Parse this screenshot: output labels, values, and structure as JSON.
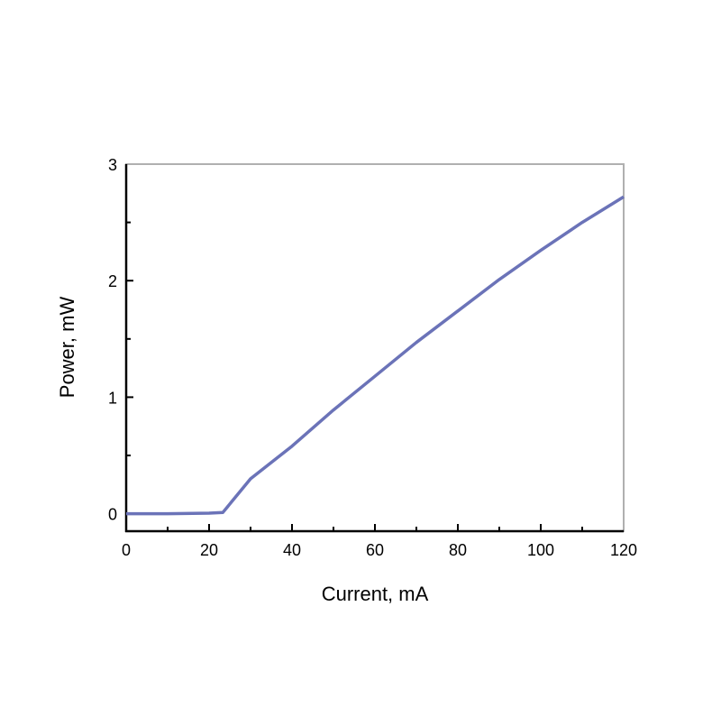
{
  "chart_data": {
    "type": "line",
    "title": "",
    "xlabel": "Current, mA",
    "ylabel": "Power, mW",
    "xlim": [
      0,
      120
    ],
    "ylim": [
      -0.15,
      3
    ],
    "xticks": [
      0,
      20,
      40,
      60,
      80,
      100,
      120
    ],
    "xtick_labels": [
      "0",
      "20",
      "40",
      "60",
      "80",
      "100",
      "120"
    ],
    "xminor": [
      10,
      30,
      50,
      70,
      90,
      110
    ],
    "yticks": [
      0,
      1,
      2,
      3
    ],
    "ytick_labels": [
      "0",
      "1",
      "2",
      "3"
    ],
    "yminor": [
      0.5,
      1.5,
      2.5
    ],
    "grid": false,
    "series": [
      {
        "color": "#6b73b8",
        "x": [
          0,
          10,
          20,
          23.3,
          30,
          40,
          50,
          60,
          70,
          80,
          90,
          100,
          110,
          120
        ],
        "y": [
          0,
          0,
          0.005,
          0.01,
          0.3,
          0.58,
          0.89,
          1.18,
          1.47,
          1.74,
          2.01,
          2.26,
          2.5,
          2.72
        ]
      }
    ]
  }
}
